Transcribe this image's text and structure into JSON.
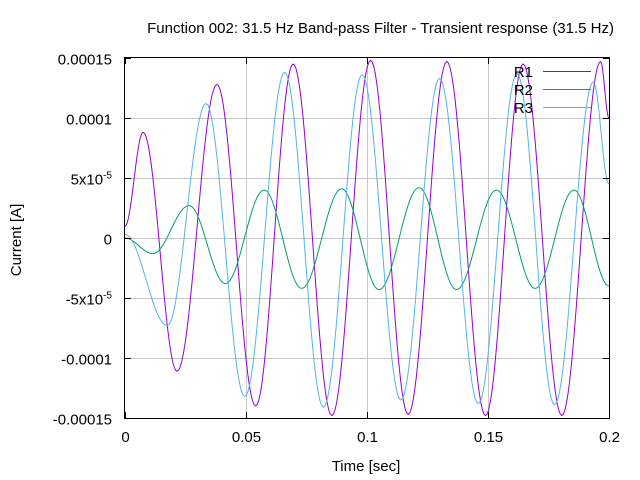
{
  "chart_data": {
    "type": "line",
    "title": "Function 002: 31.5 Hz Band-pass Filter - Transient response (31.5 Hz)",
    "xlabel": "Time [sec]",
    "ylabel": "Current [A]",
    "xlim": [
      0,
      0.2
    ],
    "ylim": [
      -0.00015,
      0.00015
    ],
    "grid": true,
    "legend_position": "top-right",
    "x_ticks": [
      {
        "value": 0,
        "label": "0"
      },
      {
        "value": 0.05,
        "label": "0.05"
      },
      {
        "value": 0.1,
        "label": "0.1"
      },
      {
        "value": 0.15,
        "label": "0.15"
      },
      {
        "value": 0.2,
        "label": "0.2"
      }
    ],
    "y_ticks": [
      {
        "value": 0.00015,
        "label": "0.00015"
      },
      {
        "value": 0.0001,
        "label": "0.0001"
      },
      {
        "value": 5e-05,
        "label": "5x10",
        "exp": "-5"
      },
      {
        "value": 0,
        "label": "0"
      },
      {
        "value": -5e-05,
        "label": "-5x10",
        "exp": "-5"
      },
      {
        "value": -0.0001,
        "label": "-0.0001"
      },
      {
        "value": -0.00015,
        "label": "-0.00015"
      }
    ],
    "series": [
      {
        "name": "R1",
        "color": "#9400d3",
        "x": [
          0,
          0.0075,
          0.0215,
          0.038,
          0.054,
          0.0695,
          0.0855,
          0.1015,
          0.117,
          0.133,
          0.149,
          0.1645,
          0.1805,
          0.1965,
          0.2
        ],
        "y": [
          1e-05,
          8.8e-05,
          -0.000111,
          0.000128,
          -0.00014,
          0.000145,
          -0.000148,
          0.000148,
          -0.000147,
          0.000147,
          -0.000148,
          0.000145,
          -0.000148,
          0.000147,
          0.0001
        ]
      },
      {
        "name": "R2",
        "color": "#009e73",
        "x": [
          0,
          0.0115,
          0.0265,
          0.0415,
          0.0575,
          0.073,
          0.0895,
          0.105,
          0.1215,
          0.137,
          0.1535,
          0.1695,
          0.1855,
          0.2
        ],
        "y": [
          0,
          -1.3e-05,
          2.7e-05,
          -3.8e-05,
          4e-05,
          -4.2e-05,
          4.1e-05,
          -4.3e-05,
          4.2e-05,
          -4.3e-05,
          4e-05,
          -4.2e-05,
          4e-05,
          -4e-05
        ]
      },
      {
        "name": "R3",
        "color": "#56b4e9",
        "x": [
          0,
          0.0175,
          0.0335,
          0.0495,
          0.066,
          0.082,
          0.098,
          0.114,
          0.13,
          0.146,
          0.162,
          0.1775,
          0.1935,
          0.2
        ],
        "y": [
          3e-06,
          -7.3e-05,
          0.000112,
          -0.000132,
          0.000138,
          -0.000141,
          0.000136,
          -0.000135,
          0.000133,
          -0.000138,
          0.000137,
          -0.000139,
          0.00013,
          4.5e-05
        ]
      }
    ]
  }
}
